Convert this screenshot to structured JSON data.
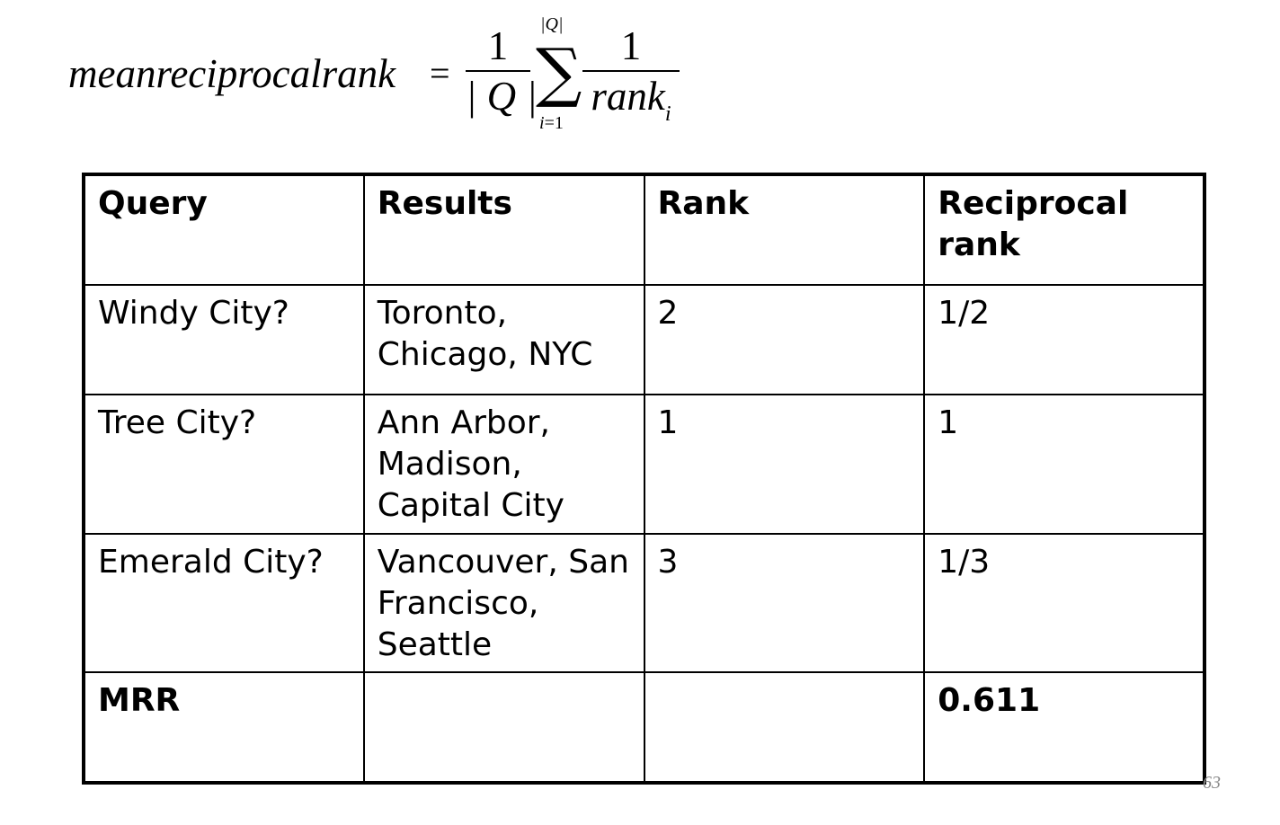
{
  "formula": {
    "lhs": "meanreciprocalrank",
    "equals": "=",
    "frac1": {
      "numerator": "1",
      "denominator": "| Q |"
    },
    "sum": {
      "symbol": "∑",
      "upper": "|Q|",
      "lower_var": "i",
      "lower_rest": "=1"
    },
    "frac2": {
      "numerator": "1",
      "denominator": "rank",
      "denominator_sub": "i"
    }
  },
  "table": {
    "headers": [
      "Query",
      "Results",
      "Rank",
      "Reciprocal rank"
    ],
    "rows": [
      [
        "Windy City?",
        "Toronto, Chicago, NYC",
        "2",
        "1/2"
      ],
      [
        "Tree City?",
        "Ann Arbor, Madison, Capital City",
        "1",
        "1"
      ],
      [
        "Emerald City?",
        "Vancouver, San Francisco, Seattle",
        "3",
        "1/3"
      ]
    ],
    "total": {
      "label": "MRR",
      "results": "",
      "rank": "",
      "value": "0.611"
    }
  },
  "page_number": "63"
}
